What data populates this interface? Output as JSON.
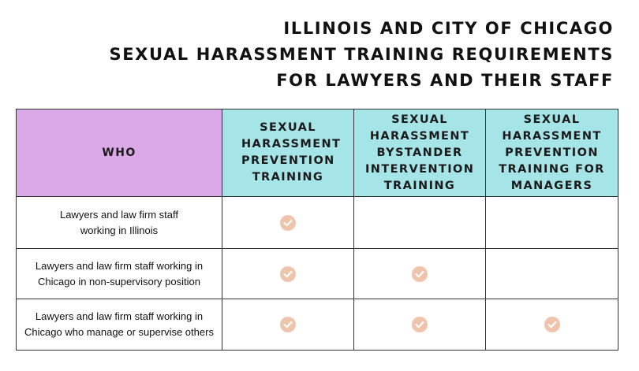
{
  "title": {
    "line1": "ILLINOIS AND CITY OF CHICAGO",
    "line2": "SEXUAL HARASSMENT TRAINING REQUIREMENTS",
    "line3": "FOR LAWYERS AND THEIR STAFF"
  },
  "table": {
    "headers": {
      "who": "WHO",
      "col1": "SEXUAL HARASSMENT PREVENTION TRAINING",
      "col2": "SEXUAL HARASSMENT BYSTANDER INTERVENTION TRAINING",
      "col3": "SEXUAL HARASSMENT PREVENTION TRAINING FOR MANAGERS"
    },
    "rows": [
      {
        "label": "Lawyers and law firm staff working in Illinois",
        "checks": [
          true,
          false,
          false
        ]
      },
      {
        "label": "Lawyers and law firm staff working in Chicago in non-supervisory position",
        "checks": [
          true,
          true,
          false
        ]
      },
      {
        "label": "Lawyers and law firm staff working in Chicago who manage or supervise others",
        "checks": [
          true,
          true,
          true
        ]
      }
    ]
  },
  "icons": {
    "check": "check-circle-icon"
  },
  "colors": {
    "who_header": "#dba8e8",
    "col_header": "#a6e5e7",
    "check": "#efc4ad"
  }
}
